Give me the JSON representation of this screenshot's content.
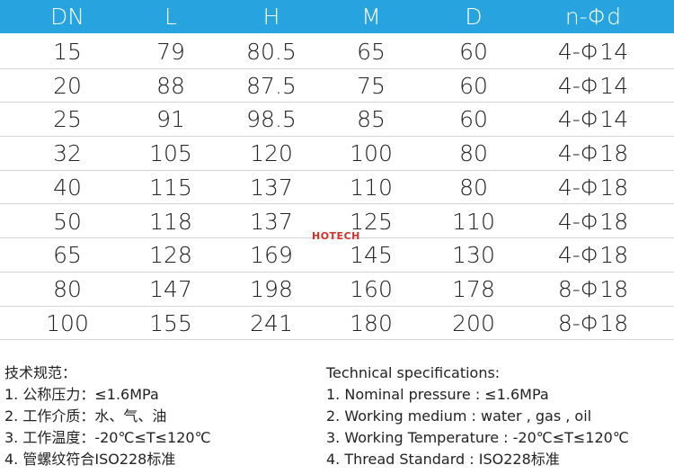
{
  "table": {
    "header": [
      "DN",
      "L",
      "H",
      "M",
      "D",
      "n-Φd"
    ],
    "rows": [
      [
        "15",
        "79",
        "80.5",
        "65",
        "60",
        "4-Φ14"
      ],
      [
        "20",
        "88",
        "87.5",
        "75",
        "60",
        "4-Φ14"
      ],
      [
        "25",
        "91",
        "98.5",
        "85",
        "60",
        "4-Φ14"
      ],
      [
        "32",
        "105",
        "120",
        "100",
        "80",
        "4-Φ18"
      ],
      [
        "40",
        "115",
        "137",
        "110",
        "80",
        "4-Φ18"
      ],
      [
        "50",
        "118",
        "137",
        "125",
        "110",
        "4-Φ18"
      ],
      [
        "65",
        "128",
        "169",
        "145",
        "130",
        "4-Φ18"
      ],
      [
        "80",
        "147",
        "198",
        "160",
        "178",
        "8-Φ18"
      ],
      [
        "100",
        "155",
        "241",
        "180",
        "200",
        "8-Φ18"
      ]
    ]
  },
  "watermark": "HOTECH",
  "specs_cn": {
    "title": "技术规范：",
    "items": [
      "1. 公称压力：≤1.6MPa",
      "2. 工作介质：水、气、油",
      "3. 工作温度：-20℃≤T≤120℃",
      "4. 管螺纹符合ISO228标准"
    ]
  },
  "specs_en": {
    "title": "Technical specifications:",
    "items": [
      "1. Nominal pressure : ≤1.6MPa",
      "2. Working medium : water , gas , oil",
      "3. Working Temperature : -20℃≤T≤120℃",
      "4. Thread Standard : ISO228标准"
    ]
  }
}
